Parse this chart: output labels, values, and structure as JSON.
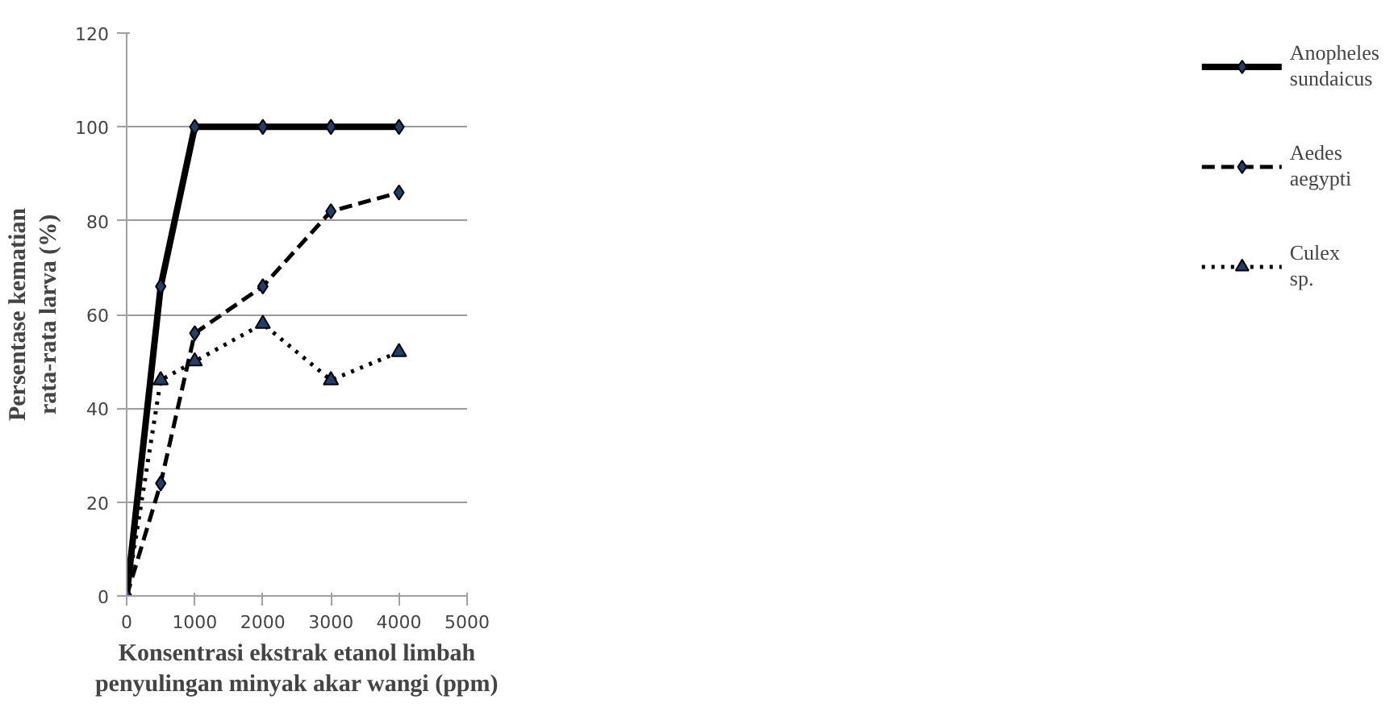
{
  "chart_data": {
    "type": "line",
    "xlabel": "Konsentrasi ekstrak etanol limbah penyulingan minyak akar wangi (ppm)",
    "ylabel": "Persentase kematian rata-rata larva (%)",
    "x": [
      0,
      500,
      1000,
      2000,
      3000,
      4000
    ],
    "series": [
      {
        "name": "Anopheles sundaicus",
        "color": "#000000",
        "values": [
          0,
          66,
          100,
          100,
          100,
          100
        ],
        "marker": "diamond",
        "line_style": "solid"
      },
      {
        "name": "Aedes aegypti",
        "color": "#000000",
        "values": [
          0,
          24,
          56,
          66,
          82,
          86
        ],
        "marker": "diamond",
        "line_style": "dashed"
      },
      {
        "name": "Culex sp.",
        "color": "#000000",
        "values": [
          0,
          46,
          50,
          58,
          46,
          52
        ],
        "marker": "triangle",
        "line_style": "dotted"
      }
    ],
    "xlim": [
      0,
      5000
    ],
    "xticks": [
      0,
      1000,
      2000,
      3000,
      4000,
      5000
    ],
    "ylim": [
      0,
      120
    ],
    "yticks": [
      0,
      20,
      40,
      60,
      80,
      100,
      120
    ],
    "grid": "y",
    "legend": "right"
  }
}
